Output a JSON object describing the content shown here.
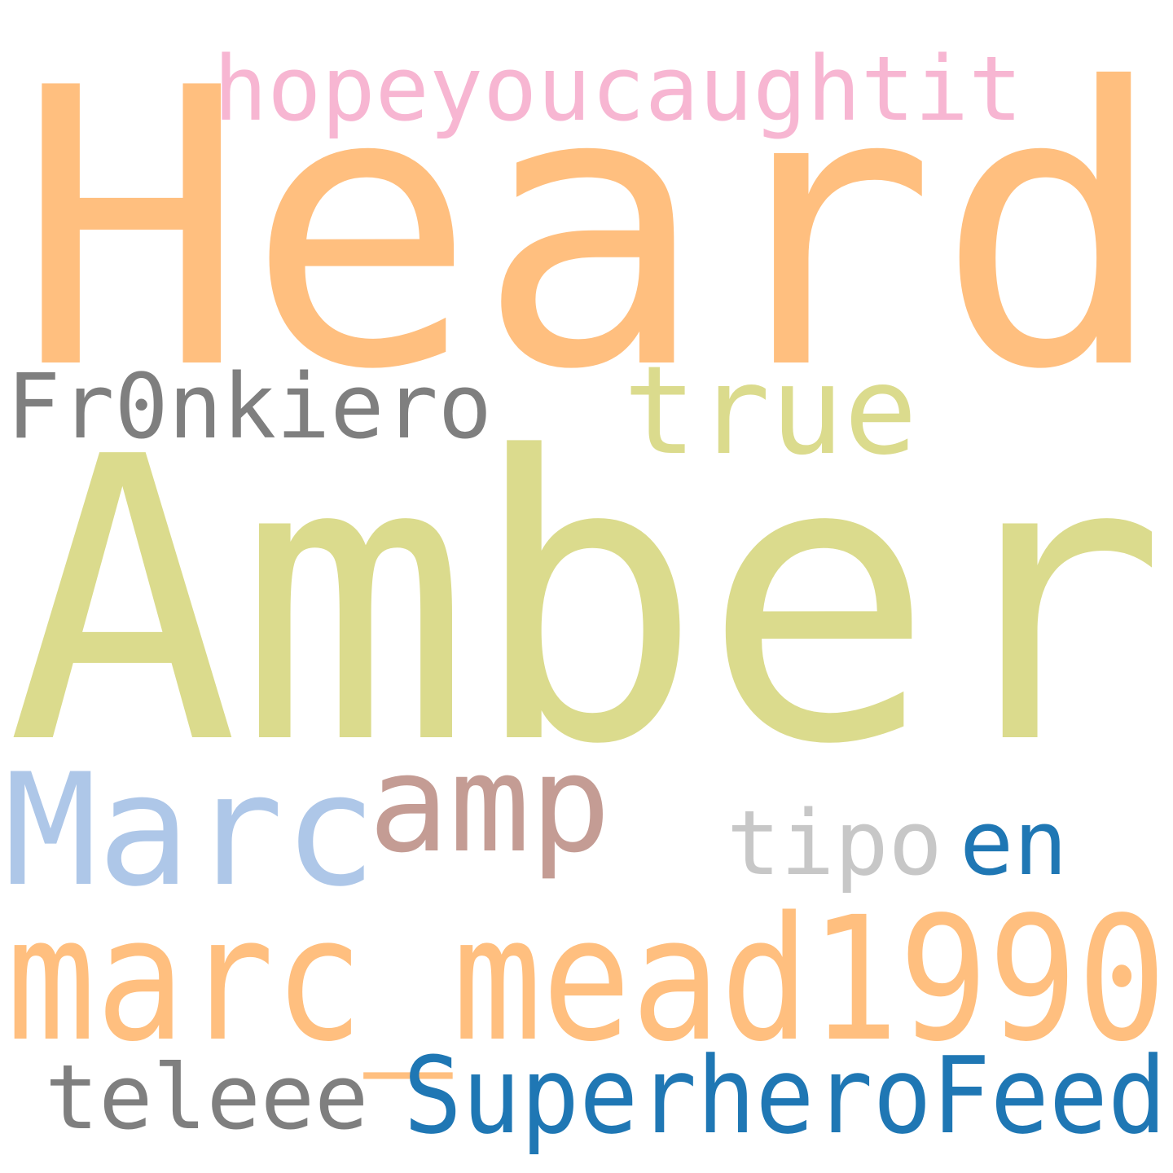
{
  "words": {
    "heard": {
      "text": "Heard",
      "color": "#ffbf7f"
    },
    "amber": {
      "text": "Amber",
      "color": "#dbdb8d"
    },
    "hope": {
      "text": "hopeyoucaughtit",
      "color": "#f7b6d2"
    },
    "true": {
      "text": "true",
      "color": "#dbdb8d"
    },
    "fr0n": {
      "text": "Fr0nkiero",
      "color": "#7f7f7f"
    },
    "marc": {
      "text": "Marc",
      "color": "#aec7e8"
    },
    "amp": {
      "text": "amp",
      "color": "#c49c94"
    },
    "tipo": {
      "text": "tipo",
      "color": "#c7c7c7"
    },
    "en": {
      "text": "en",
      "color": "#1f77b4"
    },
    "mead": {
      "text": "marc_mead1990",
      "color": "#ffbf7f"
    },
    "teleee": {
      "text": "teleee",
      "color": "#7f7f7f"
    },
    "super": {
      "text": "SuperheroFeed",
      "color": "#1f77b4"
    }
  }
}
